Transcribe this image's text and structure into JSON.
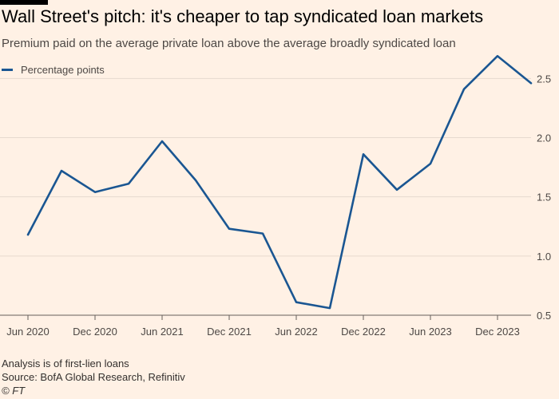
{
  "header": {
    "title": "Wall Street's pitch: it's cheaper to tap syndicated loan markets",
    "subtitle": "Premium paid on the average private loan above the average broadly syndicated loan"
  },
  "legend": {
    "label": "Percentage points",
    "color": "#1a5692"
  },
  "footer": {
    "note": "Analysis is of first-lien loans",
    "source": "Source: BofA Global Research, Refinitiv",
    "credit": "© FT"
  },
  "chart_data": {
    "type": "line",
    "title": "Wall Street's pitch: it's cheaper to tap syndicated loan markets",
    "subtitle": "Premium paid on the average private loan above the average broadly syndicated loan",
    "xlabel": "",
    "ylabel": "",
    "x_ticks": [
      "Jun 2020",
      "Dec 2020",
      "Jun 2021",
      "Dec 2021",
      "Jun 2022",
      "Dec 2022",
      "Jun 2023",
      "Dec 2023"
    ],
    "y_ticks": [
      0.5,
      1.0,
      1.5,
      2.0,
      2.5
    ],
    "ylim": [
      0.5,
      2.75
    ],
    "grid": true,
    "legend_position": "top-left",
    "series": [
      {
        "name": "Percentage points",
        "color": "#1a5692",
        "x": [
          "Jun 2020",
          "Sep 2020",
          "Dec 2020",
          "Mar 2021",
          "Jun 2021",
          "Sep 2021",
          "Dec 2021",
          "Mar 2022",
          "Jun 2022",
          "Sep 2022",
          "Dec 2022",
          "Mar 2023",
          "Jun 2023",
          "Sep 2023",
          "Dec 2023",
          "Mar 2024"
        ],
        "values": [
          1.18,
          1.72,
          1.54,
          1.61,
          1.97,
          1.64,
          1.23,
          1.19,
          0.61,
          0.56,
          1.86,
          1.56,
          1.78,
          2.41,
          2.69,
          2.46
        ]
      }
    ]
  }
}
